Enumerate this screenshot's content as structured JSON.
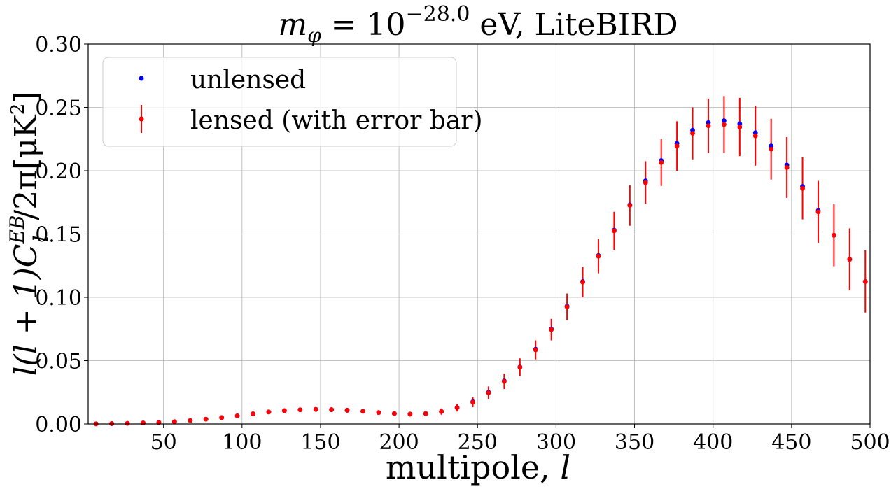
{
  "chart_data": {
    "type": "scatter",
    "title": "m_φ = 10^−28.0 eV, LiteBIRD",
    "title_parts": {
      "base": "m",
      "sub": "φ",
      "eq": " = 10",
      "sup": "−28.0",
      "rest": " eV, LiteBIRD"
    },
    "xlabel": "multipole, l",
    "xlabel_parts": {
      "text": "multipole, ",
      "var": "l"
    },
    "ylabel": "l(l + 1)C_l^EB/2π[μK²]",
    "ylabel_parts": {
      "pre": "l(l + 1)C",
      "sup": "EB",
      "sub": "l",
      "post": "/2π[μK",
      "sup2": "2",
      "close": "]"
    },
    "xlim": [
      2,
      500
    ],
    "ylim": [
      0,
      0.3
    ],
    "xticks": [
      "50",
      "100",
      "150",
      "200",
      "250",
      "300",
      "350",
      "400",
      "450",
      "500"
    ],
    "yticks": [
      "0.00",
      "0.05",
      "0.10",
      "0.15",
      "0.20",
      "0.25",
      "0.30"
    ],
    "grid": true,
    "legend_position": "top-left",
    "x": [
      7,
      17,
      27,
      37,
      47,
      57,
      67,
      77,
      87,
      97,
      107,
      117,
      127,
      137,
      147,
      157,
      167,
      177,
      187,
      197,
      207,
      217,
      227,
      237,
      247,
      257,
      267,
      277,
      287,
      297,
      307,
      317,
      327,
      337,
      347,
      357,
      367,
      377,
      387,
      397,
      407,
      417,
      427,
      437,
      447,
      457,
      467,
      477,
      487,
      497
    ],
    "series": [
      {
        "name": "unlensed",
        "color": "#0000ff",
        "values": [
          0.0001,
          0.0003,
          0.0005,
          0.0008,
          0.0012,
          0.0018,
          0.0027,
          0.0038,
          0.005,
          0.0064,
          0.008,
          0.0095,
          0.0105,
          0.0112,
          0.0115,
          0.0113,
          0.0108,
          0.01,
          0.009,
          0.0082,
          0.0078,
          0.0082,
          0.0098,
          0.013,
          0.0175,
          0.025,
          0.034,
          0.045,
          0.059,
          0.075,
          0.093,
          0.1125,
          0.133,
          0.153,
          0.173,
          0.192,
          0.208,
          0.2215,
          0.232,
          0.238,
          0.2395,
          0.237,
          0.23,
          0.2195,
          0.2045,
          0.1875,
          0.1685,
          0.149,
          0.13,
          0.1125
        ]
      },
      {
        "name": "lensed (with error bar)",
        "color": "#ff0000",
        "values": [
          0.0001,
          0.0003,
          0.0005,
          0.0008,
          0.0012,
          0.0018,
          0.0027,
          0.0038,
          0.005,
          0.0064,
          0.008,
          0.0095,
          0.0105,
          0.0112,
          0.0115,
          0.0113,
          0.0108,
          0.01,
          0.009,
          0.0082,
          0.0078,
          0.0082,
          0.0098,
          0.0128,
          0.0172,
          0.0246,
          0.0336,
          0.0448,
          0.0585,
          0.0745,
          0.0925,
          0.112,
          0.1325,
          0.1525,
          0.1725,
          0.1905,
          0.2065,
          0.2195,
          0.2295,
          0.2355,
          0.2365,
          0.2345,
          0.2275,
          0.217,
          0.2025,
          0.186,
          0.1675,
          0.149,
          0.13,
          0.1125
        ],
        "errors": [
          0.0001,
          0.0002,
          0.0002,
          0.0002,
          0.0003,
          0.0004,
          0.0005,
          0.0006,
          0.0007,
          0.0008,
          0.0009,
          0.001,
          0.0011,
          0.0012,
          0.0013,
          0.0014,
          0.0015,
          0.0016,
          0.0017,
          0.0018,
          0.0019,
          0.002,
          0.0025,
          0.003,
          0.004,
          0.005,
          0.006,
          0.007,
          0.0075,
          0.0085,
          0.0105,
          0.012,
          0.0135,
          0.015,
          0.016,
          0.017,
          0.0185,
          0.0195,
          0.0205,
          0.0215,
          0.0225,
          0.023,
          0.0235,
          0.024,
          0.024,
          0.0245,
          0.0245,
          0.0245,
          0.0245,
          0.0245
        ]
      }
    ]
  }
}
